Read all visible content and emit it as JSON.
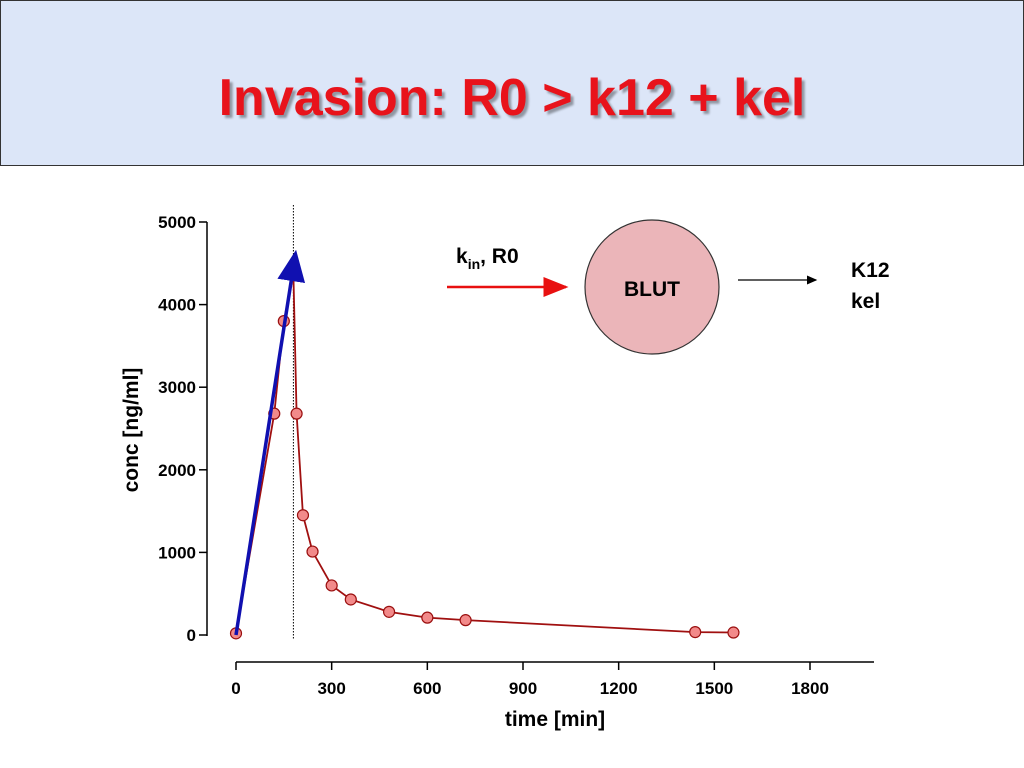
{
  "title": "Invasion: R0 > k12 + kel",
  "colors": {
    "title": "#e8131b",
    "header_bg": "#dce6f8",
    "data_line": "#a01010",
    "marker_fill": "#f28a8a",
    "marker_stroke": "#9a1010",
    "fit_line": "#1010b0",
    "input_arrow": "#e81010",
    "compartment_fill": "#ebb5b9"
  },
  "chart_data": {
    "type": "line",
    "xlabel": "time [min]",
    "ylabel": "conc [ng/ml]",
    "xlim": [
      0,
      1800
    ],
    "ylim": [
      0,
      5000
    ],
    "x_ticks": [
      0,
      300,
      600,
      900,
      1200,
      1500,
      1800
    ],
    "y_ticks": [
      0,
      1000,
      2000,
      3000,
      4000,
      5000
    ],
    "grid": false,
    "series": [
      {
        "x": [
          0,
          120,
          150,
          180,
          190,
          210,
          240,
          300,
          360,
          480,
          600,
          720,
          1440,
          1560
        ],
        "y": [
          20,
          2680,
          3800,
          4370,
          2680,
          1450,
          1010,
          600,
          430,
          280,
          210,
          180,
          35,
          30
        ]
      }
    ],
    "fit_line": {
      "x": [
        0,
        185
      ],
      "y": [
        0,
        4580
      ]
    },
    "vline_x": 180
  },
  "diagram": {
    "compartment_label": "BLUT",
    "input_label_main": "k",
    "input_label_sub": "in",
    "input_label_rest": ", R0",
    "output_label_1": "K12",
    "output_label_2": "kel"
  }
}
